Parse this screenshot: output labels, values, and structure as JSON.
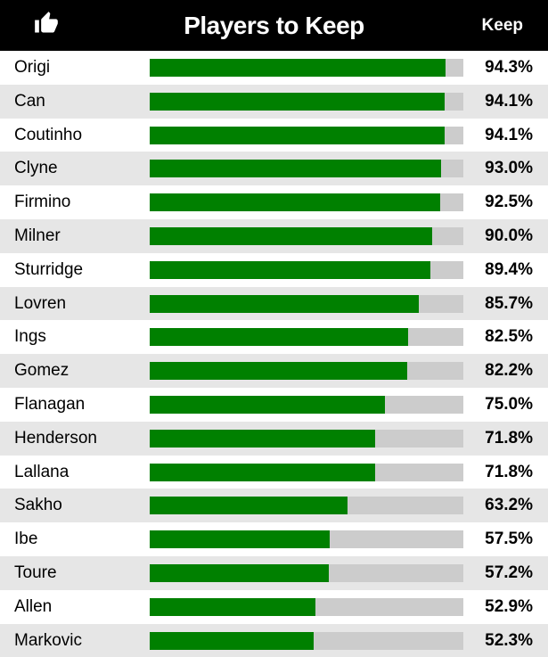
{
  "header": {
    "title": "Players to Keep",
    "column_label": "Keep",
    "icon": "thumbs-up-icon"
  },
  "colors": {
    "bar_fill": "#008000",
    "bar_track": "#cccccc",
    "header_bg": "#000000",
    "row_alt_bg": "#e6e6e6"
  },
  "chart_data": {
    "type": "bar",
    "orientation": "horizontal",
    "title": "Players to Keep",
    "categories": [
      "Origi",
      "Can",
      "Coutinho",
      "Clyne",
      "Firmino",
      "Milner",
      "Sturridge",
      "Lovren",
      "Ings",
      "Gomez",
      "Flanagan",
      "Henderson",
      "Lallana",
      "Sakho",
      "Ibe",
      "Toure",
      "Allen",
      "Markovic"
    ],
    "values": [
      94.3,
      94.1,
      94.1,
      93.0,
      92.5,
      90.0,
      89.4,
      85.7,
      82.5,
      82.2,
      75.0,
      71.8,
      71.8,
      63.2,
      57.5,
      57.2,
      52.9,
      52.3
    ],
    "value_labels": [
      "94.3%",
      "94.1%",
      "94.1%",
      "93.0%",
      "92.5%",
      "90.0%",
      "89.4%",
      "85.7%",
      "82.5%",
      "82.2%",
      "75.0%",
      "71.8%",
      "71.8%",
      "63.2%",
      "57.5%",
      "57.2%",
      "52.9%",
      "52.3%"
    ],
    "xlim": [
      0,
      100
    ],
    "grid": false,
    "legend": "none"
  }
}
